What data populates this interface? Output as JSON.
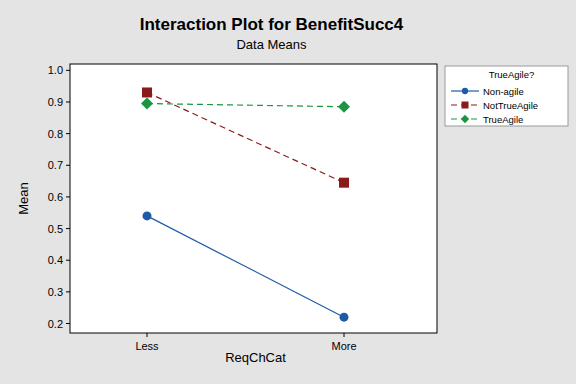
{
  "chart_data": {
    "type": "line",
    "title": "Interaction Plot for BenefitSucc4",
    "subtitle": "Data Means",
    "x_label": "ReqChCat",
    "y_label": "Mean",
    "legend_title": "TrueAgile?",
    "categories": [
      "Less",
      "More"
    ],
    "series": [
      {
        "name": "Non-agile",
        "color": "#1f5aa6",
        "marker": "circle",
        "line_style": "solid",
        "values": [
          0.54,
          0.22
        ]
      },
      {
        "name": "NotTrueAgile",
        "color": "#8b1a1a",
        "marker": "square",
        "line_style": "dashed",
        "values": [
          0.93,
          0.645
        ]
      },
      {
        "name": "TrueAgile",
        "color": "#1a9641",
        "marker": "diamond",
        "line_style": "dashed",
        "values": [
          0.895,
          0.885
        ]
      }
    ],
    "ylim": [
      0.17,
      1.02
    ],
    "yticks": [
      0.2,
      0.3,
      0.4,
      0.5,
      0.6,
      0.7,
      0.8,
      0.9,
      {
        "value": 1,
        "label": "1.0"
      }
    ],
    "grid": false,
    "legend": "right"
  }
}
